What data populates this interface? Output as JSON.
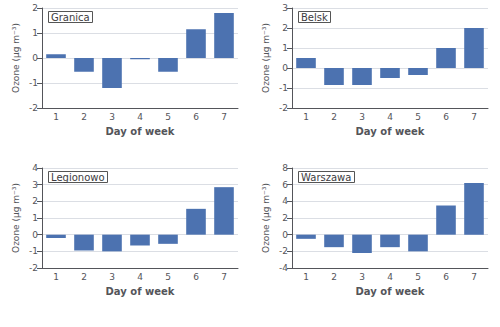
{
  "chart_data": [
    {
      "type": "bar",
      "title": "Granica",
      "categories": [
        "1",
        "2",
        "3",
        "4",
        "5",
        "6",
        "7"
      ],
      "values": [
        0.15,
        -0.55,
        -1.2,
        -0.05,
        -0.55,
        1.15,
        1.8
      ],
      "color": "#4C72B0",
      "xlabel": "Day of week",
      "ylabel": "Ozone (µg m⁻³)",
      "ylim": [
        -2,
        2
      ],
      "yticks": [
        -2,
        -1,
        0,
        1,
        2
      ],
      "grid": true
    },
    {
      "type": "bar",
      "title": "Belsk",
      "categories": [
        "1",
        "2",
        "3",
        "4",
        "5",
        "6",
        "7"
      ],
      "values": [
        0.5,
        -0.85,
        -0.85,
        -0.5,
        -0.35,
        1.0,
        2.0
      ],
      "color": "#4C72B0",
      "xlabel": "Day of week",
      "ylabel": "Ozone (µg m⁻³)",
      "ylim": [
        -2,
        3
      ],
      "yticks": [
        -2,
        -1,
        0,
        1,
        2,
        3
      ],
      "grid": true
    },
    {
      "type": "bar",
      "title": "Legionowo",
      "categories": [
        "1",
        "2",
        "3",
        "4",
        "5",
        "6",
        "7"
      ],
      "values": [
        -0.2,
        -0.95,
        -1.0,
        -0.65,
        -0.55,
        1.55,
        2.85
      ],
      "color": "#4C72B0",
      "xlabel": "Day of week",
      "ylabel": "Ozone (µg m⁻³)",
      "ylim": [
        -2,
        4
      ],
      "yticks": [
        -2,
        -1,
        0,
        1,
        2,
        3,
        4
      ],
      "grid": true
    },
    {
      "type": "bar",
      "title": "Warszawa",
      "categories": [
        "1",
        "2",
        "3",
        "4",
        "5",
        "6",
        "7"
      ],
      "values": [
        -0.5,
        -1.5,
        -2.2,
        -1.5,
        -2.0,
        3.5,
        6.2
      ],
      "color": "#4C72B0",
      "xlabel": "Day of week",
      "ylabel": "Ozone (µg m⁻³)",
      "ylim": [
        -4,
        8
      ],
      "yticks": [
        -4,
        -2,
        0,
        2,
        4,
        6,
        8
      ],
      "grid": true
    }
  ]
}
